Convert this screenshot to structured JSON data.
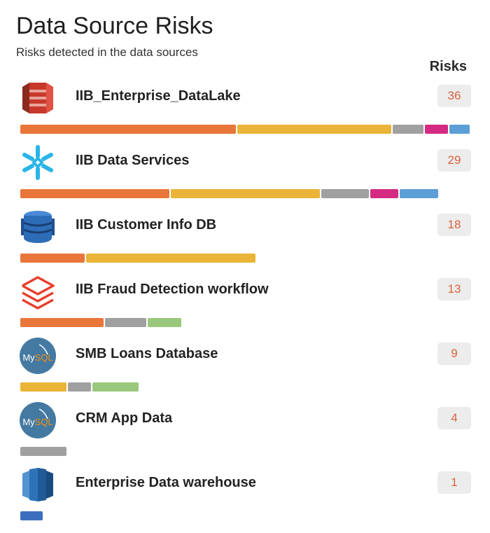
{
  "header": {
    "title": "Data Source Risks",
    "subtitle": "Risks detected in the data sources",
    "column_label": "Risks"
  },
  "colors": {
    "orange": "#e8763a",
    "yellow": "#e9b437",
    "gray": "#a0a0a0",
    "pink": "#d42a82",
    "blue": "#5b9fd6",
    "green": "#99c87c",
    "navy": "#3e6fbf",
    "risk_count": "#d9623b"
  },
  "sources": [
    {
      "name": "IIB_Enterprise_DataLake",
      "risks": "36",
      "icon": "amazon-s3-icon",
      "segments": [
        {
          "color": "orange",
          "value": 14
        },
        {
          "color": "yellow",
          "value": 10
        },
        {
          "color": "gray",
          "value": 2
        },
        {
          "color": "pink",
          "value": 1.5
        },
        {
          "color": "blue",
          "value": 1.3
        }
      ]
    },
    {
      "name": "IIB Data Services",
      "risks": "29",
      "icon": "snowflake-icon",
      "segments": [
        {
          "color": "orange",
          "value": 9.7
        },
        {
          "color": "yellow",
          "value": 9.7
        },
        {
          "color": "gray",
          "value": 3.1
        },
        {
          "color": "pink",
          "value": 1.8
        },
        {
          "color": "blue",
          "value": 2.5
        }
      ]
    },
    {
      "name": "IIB Customer Info DB",
      "risks": "18",
      "icon": "amazon-dynamodb-icon",
      "segments": [
        {
          "color": "orange",
          "value": 4.2
        },
        {
          "color": "yellow",
          "value": 11
        }
      ]
    },
    {
      "name": "IIB Fraud Detection workflow",
      "risks": "13",
      "icon": "databricks-icon",
      "segments": [
        {
          "color": "orange",
          "value": 5.4
        },
        {
          "color": "gray",
          "value": 2.7
        },
        {
          "color": "green",
          "value": 2.2
        }
      ]
    },
    {
      "name": "SMB Loans Database",
      "risks": "9",
      "icon": "mysql-icon",
      "segments": [
        {
          "color": "yellow",
          "value": 3
        },
        {
          "color": "gray",
          "value": 1.5
        },
        {
          "color": "green",
          "value": 3
        }
      ]
    },
    {
      "name": "CRM App Data",
      "risks": "4",
      "icon": "mysql-icon",
      "segments": [
        {
          "color": "gray",
          "value": 3
        }
      ]
    },
    {
      "name": "Enterprise Data warehouse",
      "risks": "1",
      "icon": "amazon-redshift-icon",
      "segments": [
        {
          "color": "navy",
          "value": 1.45
        }
      ]
    }
  ]
}
